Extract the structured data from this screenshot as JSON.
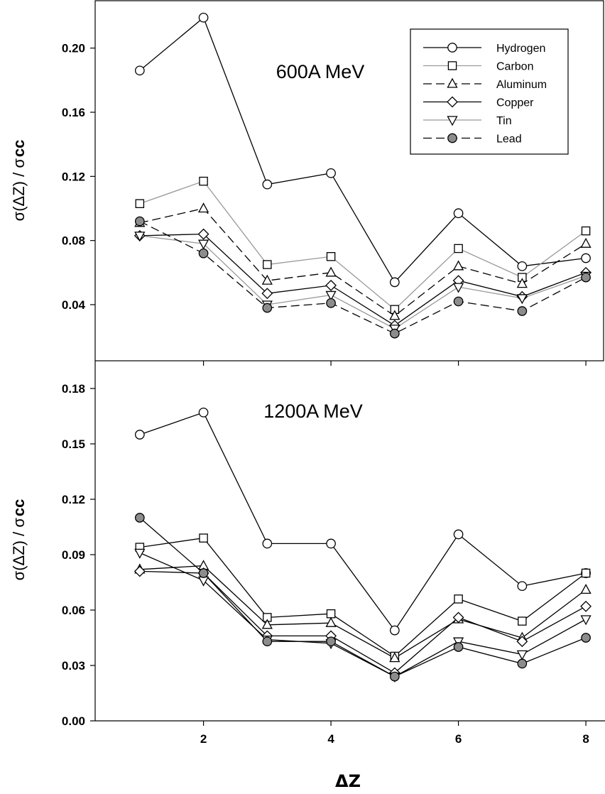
{
  "chart_data": [
    {
      "type": "line",
      "title": "600A MeV",
      "xlabel": "ΔZ",
      "ylabel_main": "σ(ΔZ) / σ",
      "ylabel_sub": "cc",
      "ylim": [
        0.005,
        0.23
      ],
      "yticks": [
        0.04,
        0.08,
        0.12,
        0.16,
        0.2
      ],
      "ytick_labels": [
        "0.04",
        "0.08",
        "0.12",
        "0.16",
        "0.20"
      ],
      "xlim": [
        0.3,
        8.3
      ],
      "x": [
        1,
        2,
        3,
        4,
        5,
        6,
        7,
        8
      ],
      "legend_position": "top-right",
      "series": [
        {
          "name": "Hydrogen",
          "marker": "circle",
          "line": "solid",
          "color": "#000000",
          "values": [
            0.186,
            0.219,
            0.115,
            0.122,
            0.054,
            0.097,
            0.064,
            0.069
          ]
        },
        {
          "name": "Carbon",
          "marker": "square",
          "line": "solid",
          "color": "#999999",
          "values": [
            0.103,
            0.117,
            0.065,
            0.07,
            0.037,
            0.075,
            0.057,
            0.086
          ]
        },
        {
          "name": "Aluminum",
          "marker": "triangle-up",
          "line": "dashed",
          "color": "#000000",
          "values": [
            0.091,
            0.1,
            0.055,
            0.06,
            0.033,
            0.064,
            0.053,
            0.078
          ]
        },
        {
          "name": "Copper",
          "marker": "diamond",
          "line": "solid",
          "color": "#000000",
          "values": [
            0.083,
            0.084,
            0.047,
            0.052,
            0.027,
            0.055,
            0.045,
            0.06
          ]
        },
        {
          "name": "Tin",
          "marker": "triangle-down",
          "line": "solid",
          "color": "#999999",
          "values": [
            0.083,
            0.078,
            0.04,
            0.046,
            0.025,
            0.051,
            0.044,
            0.058
          ]
        },
        {
          "name": "Lead",
          "marker": "filled-circle",
          "line": "dashed",
          "color": "#000000",
          "values": [
            0.092,
            0.072,
            0.038,
            0.041,
            0.022,
            0.042,
            0.036,
            0.057
          ]
        }
      ]
    },
    {
      "type": "line",
      "title": "1200A MeV",
      "xlabel": "ΔZ",
      "ylabel_main": "σ(ΔZ) / σ",
      "ylabel_sub": "cc",
      "ylim": [
        0.0,
        0.195
      ],
      "yticks": [
        0.0,
        0.03,
        0.06,
        0.09,
        0.12,
        0.15,
        0.18
      ],
      "ytick_labels": [
        "0.00",
        "0.03",
        "0.06",
        "0.09",
        "0.12",
        "0.15",
        "0.18"
      ],
      "xlim": [
        0.3,
        8.3
      ],
      "x": [
        1,
        2,
        3,
        4,
        5,
        6,
        7,
        8
      ],
      "xticks": [
        2,
        4,
        6,
        8
      ],
      "xtick_labels": [
        "2",
        "4",
        "6",
        "8"
      ],
      "series": [
        {
          "name": "Hydrogen",
          "marker": "circle",
          "line": "solid",
          "color": "#000000",
          "values": [
            0.155,
            0.167,
            0.096,
            0.096,
            0.049,
            0.101,
            0.073,
            0.08
          ]
        },
        {
          "name": "Carbon",
          "marker": "square",
          "line": "solid",
          "color": "#000000",
          "values": [
            0.094,
            0.099,
            0.056,
            0.058,
            0.035,
            0.066,
            0.054,
            0.08
          ]
        },
        {
          "name": "Aluminum",
          "marker": "triangle-up",
          "line": "solid",
          "color": "#000000",
          "values": [
            0.082,
            0.084,
            0.052,
            0.053,
            0.034,
            0.055,
            0.045,
            0.071
          ]
        },
        {
          "name": "Copper",
          "marker": "diamond",
          "line": "solid",
          "color": "#000000",
          "values": [
            0.081,
            0.08,
            0.046,
            0.046,
            0.026,
            0.056,
            0.043,
            0.062
          ]
        },
        {
          "name": "Tin",
          "marker": "triangle-down",
          "line": "solid",
          "color": "#000000",
          "values": [
            0.091,
            0.076,
            0.044,
            0.042,
            0.024,
            0.043,
            0.036,
            0.055
          ]
        },
        {
          "name": "Lead",
          "marker": "filled-circle",
          "line": "solid",
          "color": "#000000",
          "values": [
            0.11,
            0.08,
            0.043,
            0.043,
            0.024,
            0.04,
            0.031,
            0.045
          ]
        }
      ]
    }
  ]
}
